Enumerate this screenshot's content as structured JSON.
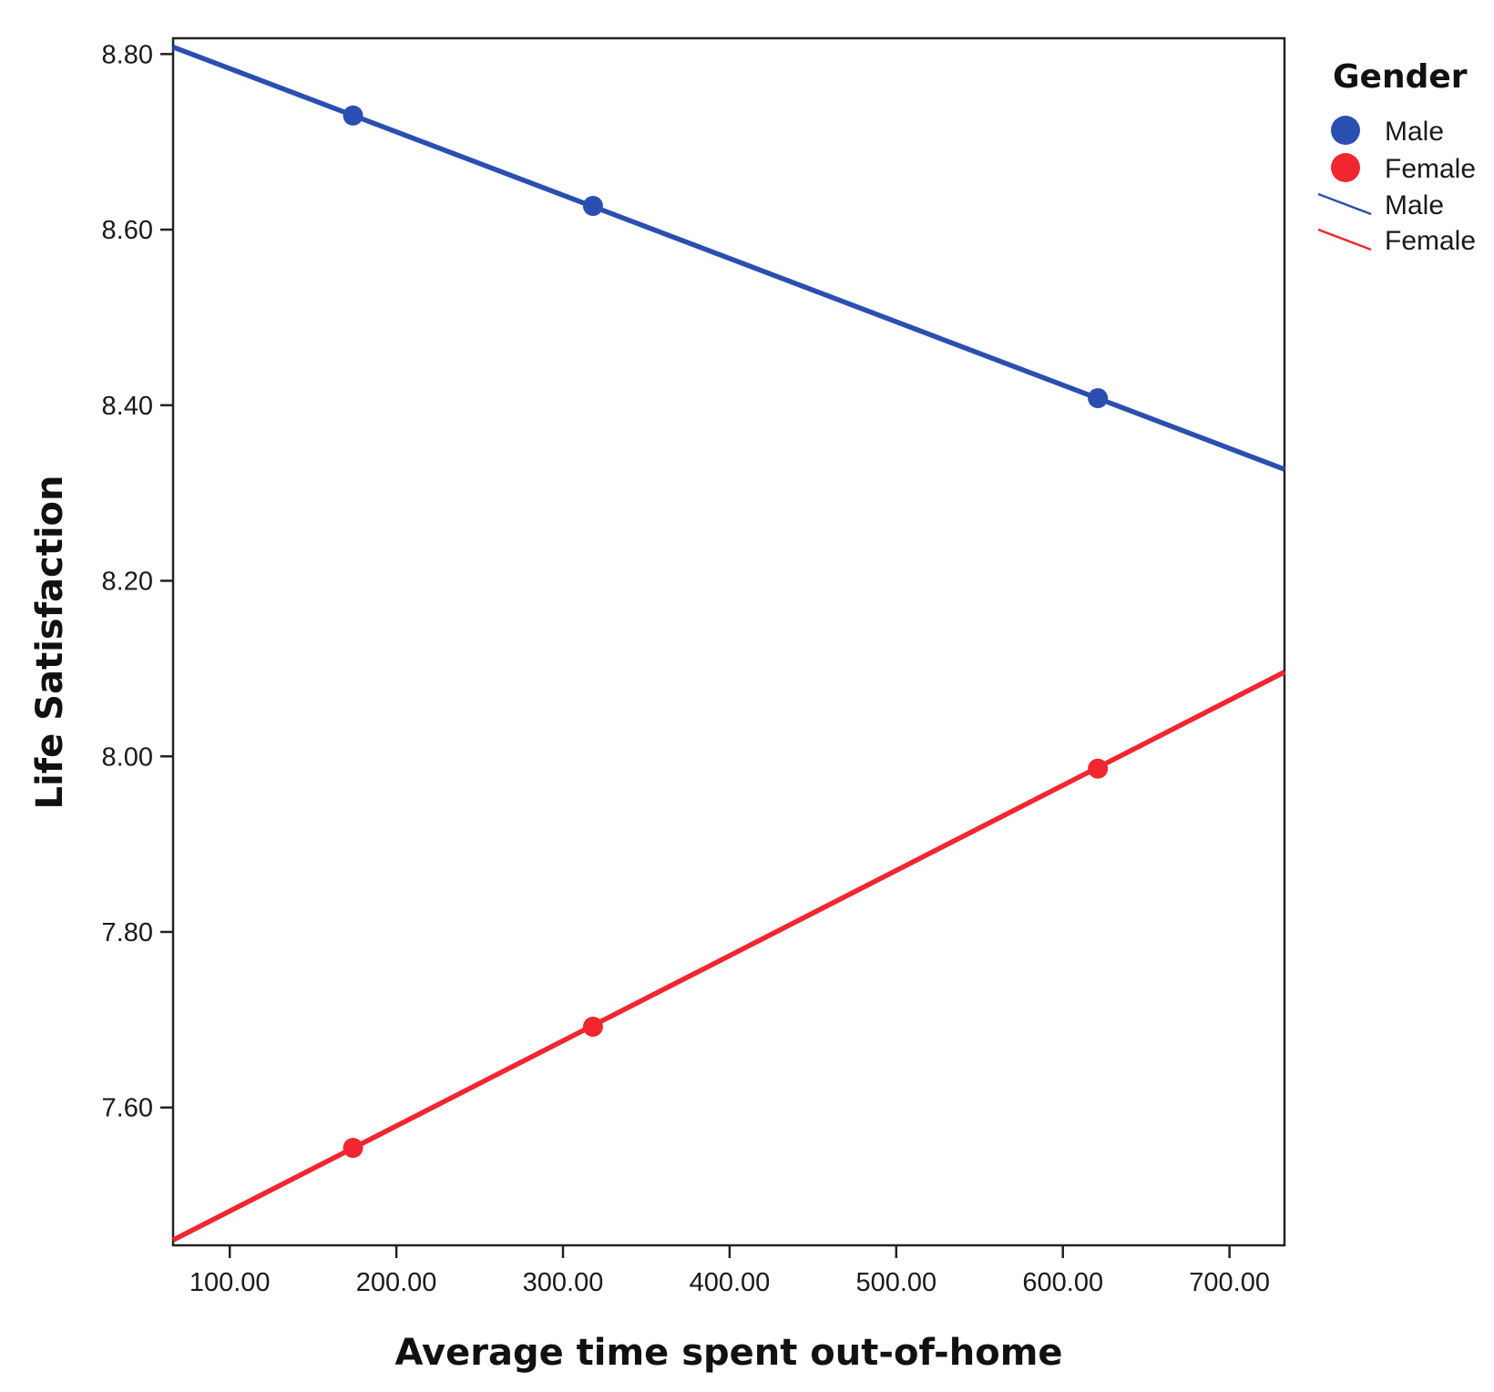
{
  "chart_data": {
    "type": "line",
    "xlabel": "Average time spent out-of-home",
    "ylabel": "Life Satisfaction",
    "xlim": [
      66,
      733
    ],
    "ylim": [
      7.443,
      8.818
    ],
    "x_ticks": [
      100,
      200,
      300,
      400,
      500,
      600,
      700
    ],
    "x_tick_labels": [
      "100.00",
      "200.00",
      "300.00",
      "400.00",
      "500.00",
      "600.00",
      "700.00"
    ],
    "y_ticks": [
      7.6,
      7.8,
      8.0,
      8.2,
      8.4,
      8.6,
      8.8
    ],
    "y_tick_labels": [
      "7.60",
      "7.80",
      "8.00",
      "8.20",
      "8.40",
      "8.60",
      "8.80"
    ],
    "grid": false,
    "legend": {
      "title": "Gender",
      "placement": "right",
      "entries": [
        {
          "label": "Male",
          "kind": "marker",
          "color": "#2a4fb0"
        },
        {
          "label": "Female",
          "kind": "marker",
          "color": "#f2262f"
        },
        {
          "label": "Male",
          "kind": "line",
          "color": "#2a4fb0"
        },
        {
          "label": "Female",
          "kind": "line",
          "color": "#f2262f"
        }
      ]
    },
    "series": [
      {
        "name": "Male",
        "color": "#2a4fb0",
        "points": [
          {
            "x": 174,
            "y": 8.73
          },
          {
            "x": 318,
            "y": 8.627
          },
          {
            "x": 621,
            "y": 8.408
          }
        ],
        "fit_line": [
          {
            "x": 66,
            "y": 8.808
          },
          {
            "x": 733,
            "y": 8.327
          }
        ]
      },
      {
        "name": "Female",
        "color": "#f2262f",
        "points": [
          {
            "x": 174,
            "y": 7.554
          },
          {
            "x": 318,
            "y": 7.692
          },
          {
            "x": 621,
            "y": 7.986
          }
        ],
        "fit_line": [
          {
            "x": 66,
            "y": 7.449
          },
          {
            "x": 733,
            "y": 8.096
          }
        ]
      }
    ]
  }
}
